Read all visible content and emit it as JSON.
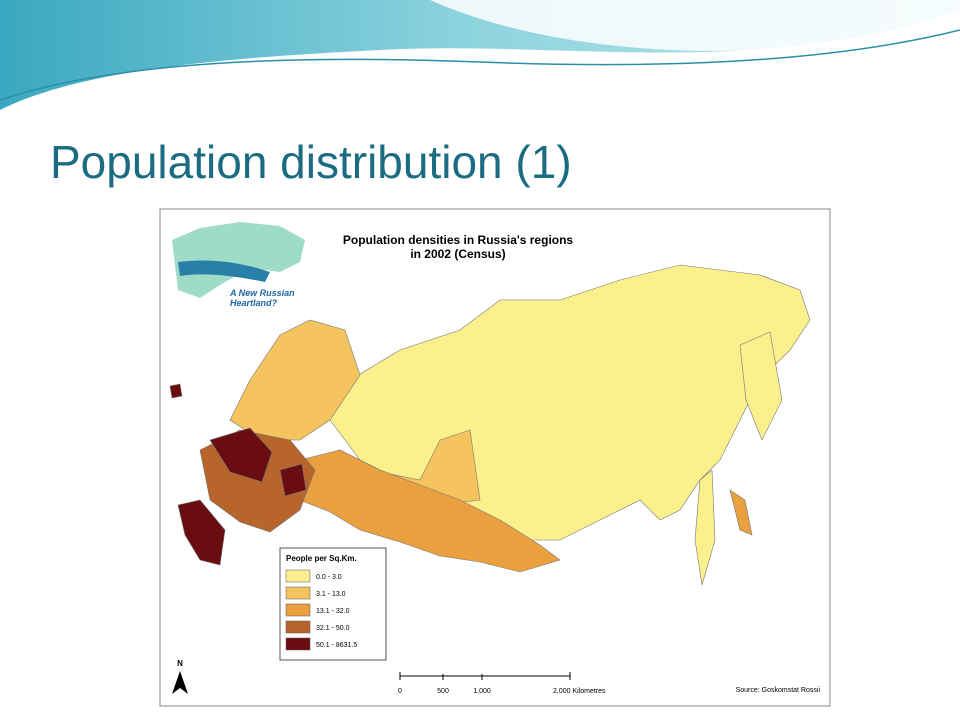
{
  "slide": {
    "title": "Population distribution (1)"
  },
  "map": {
    "title": [
      "Population densities in Russia's regions",
      "in 2002 (Census)"
    ],
    "inset_label": [
      "A New Russian",
      "Heartland?"
    ],
    "legend": {
      "title": "People per Sq.Km.",
      "items": [
        {
          "label": "0.0 - 3.0",
          "color": "#fbf08c"
        },
        {
          "label": "3.1 - 13.0",
          "color": "#f5c45e"
        },
        {
          "label": "13.1 - 32.0",
          "color": "#eba03f"
        },
        {
          "label": "32.1 - 50.0",
          "color": "#b7652a"
        },
        {
          "label": "50.1 - 8631.5",
          "color": "#6a0d10"
        }
      ]
    },
    "north": "N",
    "scale_bar": [
      "0",
      "500",
      "1,000",
      "2,000 Kilometres"
    ],
    "source": "Source: Goskomstat Rossii"
  }
}
